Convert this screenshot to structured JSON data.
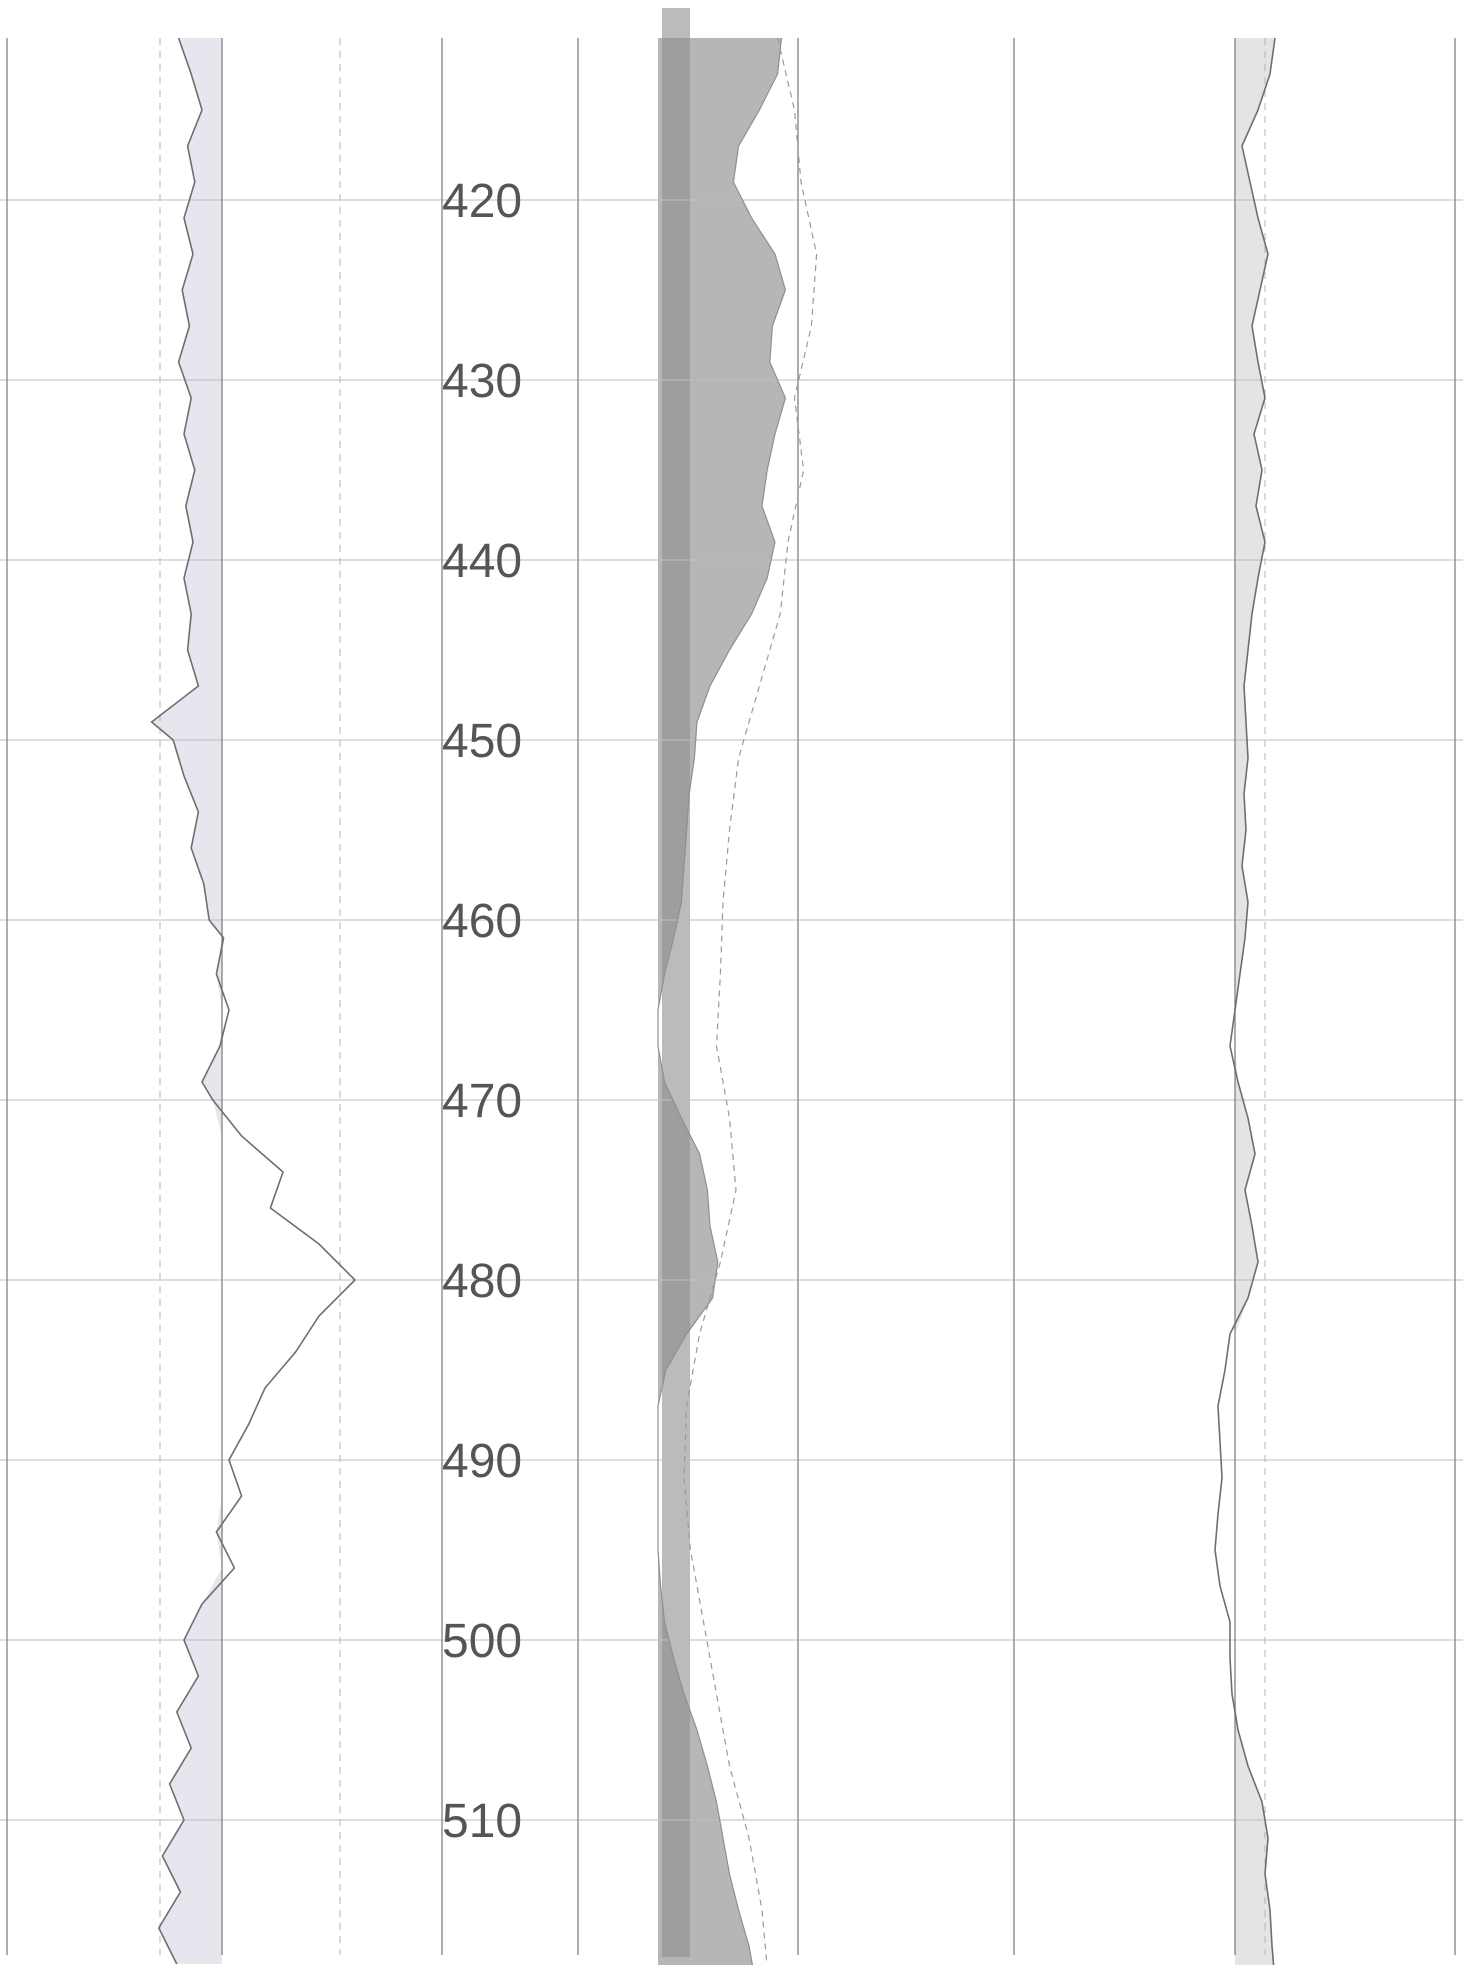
{
  "chart_data": {
    "type": "line",
    "title": "",
    "depth_axis": {
      "ticks": [
        420,
        430,
        440,
        450,
        460,
        470,
        480,
        490,
        500,
        510
      ],
      "range": [
        411,
        519
      ],
      "orientation": "vertical, increasing downward"
    },
    "tracks": [
      {
        "name": "",
        "fill_color": "#e6e6ee",
        "series": [
          {
            "name": "",
            "depth": [
              411,
              413,
              415,
              417,
              419,
              421,
              423,
              425,
              427,
              429,
              431,
              433,
              435,
              437,
              439,
              441,
              443,
              445,
              447,
              449,
              450,
              452,
              454,
              456,
              458,
              460,
              461,
              463,
              465,
              467,
              469,
              470,
              472,
              474,
              476,
              478,
              480,
              482,
              484,
              486,
              488,
              490,
              492,
              494,
              496,
              498,
              500,
              502,
              504,
              506,
              508,
              510,
              512,
              514,
              516,
              518
            ],
            "value": [
              0.27,
              0.34,
              0.4,
              0.32,
              0.36,
              0.3,
              0.35,
              0.29,
              0.33,
              0.27,
              0.34,
              0.3,
              0.36,
              0.31,
              0.35,
              0.3,
              0.34,
              0.32,
              0.38,
              0.12,
              0.24,
              0.3,
              0.38,
              0.34,
              0.41,
              0.44,
              0.52,
              0.48,
              0.55,
              0.5,
              0.4,
              0.46,
              0.62,
              0.85,
              0.78,
              1.05,
              1.25,
              1.05,
              0.92,
              0.75,
              0.66,
              0.55,
              0.62,
              0.48,
              0.58,
              0.4,
              0.3,
              0.38,
              0.26,
              0.34,
              0.22,
              0.3,
              0.18,
              0.28,
              0.16,
              0.26
            ]
          }
        ]
      },
      {
        "name": "",
        "fill_color": "#a9a9a9",
        "series": [
          {
            "name": "",
            "depth": [
              411,
              413,
              415,
              417,
              419,
              421,
              423,
              425,
              427,
              429,
              431,
              433,
              435,
              437,
              439,
              441,
              443,
              445,
              447,
              449,
              451,
              453,
              455,
              457,
              459,
              461,
              463,
              465,
              467,
              469,
              471,
              473,
              475,
              477,
              479,
              481,
              483,
              485,
              487,
              489,
              491,
              493,
              495,
              497,
              499,
              501,
              503,
              505,
              507,
              509,
              511,
              513,
              515,
              517,
              519
            ],
            "value": [
              0.95,
              0.92,
              0.78,
              0.62,
              0.58,
              0.72,
              0.9,
              0.98,
              0.88,
              0.86,
              0.98,
              0.9,
              0.84,
              0.8,
              0.9,
              0.84,
              0.72,
              0.55,
              0.4,
              0.3,
              0.28,
              0.24,
              0.22,
              0.2,
              0.18,
              0.12,
              0.05,
              0.0,
              0.0,
              0.05,
              0.18,
              0.32,
              0.38,
              0.4,
              0.46,
              0.42,
              0.22,
              0.06,
              0.0,
              0.0,
              0.0,
              0.0,
              0.0,
              0.02,
              0.05,
              0.12,
              0.2,
              0.3,
              0.38,
              0.45,
              0.5,
              0.55,
              0.62,
              0.7,
              0.75
            ]
          },
          {
            "name": "",
            "depth": [
              411,
              415,
              419,
              423,
              427,
              431,
              435,
              439,
              443,
              447,
              451,
              455,
              459,
              463,
              467,
              471,
              475,
              479,
              483,
              487,
              491,
              495,
              499,
              503,
              507,
              511,
              515,
              519
            ],
            "value": [
              0.92,
              1.05,
              1.1,
              1.22,
              1.18,
              1.05,
              1.12,
              1.0,
              0.94,
              0.78,
              0.62,
              0.55,
              0.5,
              0.48,
              0.45,
              0.55,
              0.6,
              0.48,
              0.32,
              0.22,
              0.2,
              0.25,
              0.35,
              0.45,
              0.55,
              0.7,
              0.8,
              0.85
            ]
          }
        ]
      },
      {
        "name": "",
        "fill_color": "#e4e4e4",
        "series": [
          {
            "name": "",
            "depth": [
              411,
              413,
              415,
              417,
              419,
              421,
              423,
              425,
              427,
              429,
              431,
              433,
              435,
              437,
              439,
              441,
              443,
              445,
              447,
              449,
              451,
              453,
              455,
              457,
              459,
              461,
              463,
              465,
              467,
              469,
              471,
              473,
              475,
              477,
              479,
              481,
              483,
              485,
              487,
              489,
              491,
              493,
              495,
              497,
              499,
              501,
              503,
              505,
              507,
              509,
              511,
              513,
              515,
              517,
              519
            ],
            "value": [
              1.15,
              1.1,
              0.98,
              0.82,
              0.9,
              0.98,
              1.08,
              1.0,
              0.92,
              0.98,
              1.05,
              0.94,
              1.02,
              0.96,
              1.05,
              0.98,
              0.92,
              0.88,
              0.84,
              0.86,
              0.88,
              0.84,
              0.86,
              0.82,
              0.88,
              0.85,
              0.8,
              0.75,
              0.7,
              0.78,
              0.88,
              0.95,
              0.85,
              0.92,
              0.98,
              0.88,
              0.7,
              0.65,
              0.58,
              0.6,
              0.62,
              0.58,
              0.55,
              0.6,
              0.7,
              0.7,
              0.72,
              0.78,
              0.88,
              1.02,
              1.08,
              1.05,
              1.1,
              1.12,
              1.15
            ]
          }
        ]
      }
    ],
    "grid": true
  }
}
